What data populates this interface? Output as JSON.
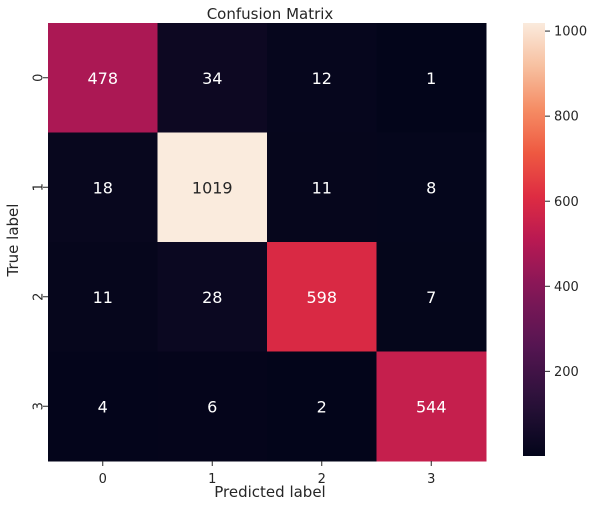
{
  "chart_data": {
    "type": "heatmap",
    "title": "Confusion Matrix",
    "xlabel": "Predicted label",
    "ylabel": "True label",
    "x_categories": [
      "0",
      "1",
      "2",
      "3"
    ],
    "y_categories": [
      "0",
      "1",
      "2",
      "3"
    ],
    "values": [
      [
        478,
        34,
        12,
        1
      ],
      [
        18,
        1019,
        11,
        8
      ],
      [
        11,
        28,
        598,
        7
      ],
      [
        4,
        6,
        2,
        544
      ]
    ],
    "colormap": "rocket",
    "vmin": 1,
    "vmax": 1019,
    "colorbar": {
      "ticks": [
        200,
        400,
        600,
        800,
        1000
      ],
      "tick_labels": [
        "200",
        "400",
        "600",
        "800",
        "1000"
      ]
    },
    "grid": false
  }
}
